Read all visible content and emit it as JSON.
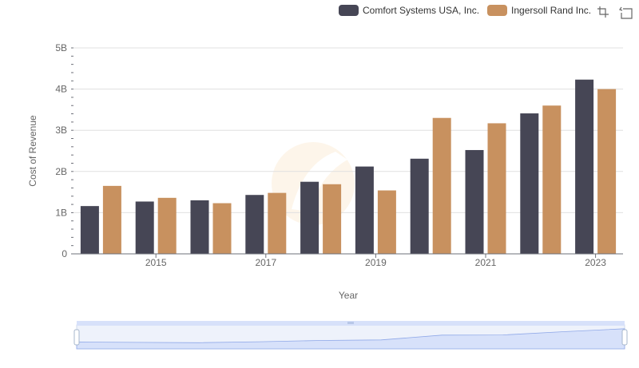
{
  "legend": {
    "items": [
      {
        "label": "Comfort Systems USA, Inc.",
        "color": "#464655"
      },
      {
        "label": "Ingersoll Rand Inc.",
        "color": "#c8915f"
      }
    ]
  },
  "toolbox": {
    "icons": [
      "zoom-icon",
      "zoom-reset-icon"
    ]
  },
  "chart_data": {
    "type": "bar",
    "categories": [
      "2014",
      "2015",
      "2016",
      "2017",
      "2018",
      "2019",
      "2020",
      "2021",
      "2022",
      "2023"
    ],
    "x_tick_labels": [
      "2015",
      "2017",
      "2019",
      "2021",
      "2023"
    ],
    "series": [
      {
        "name": "Comfort Systems USA, Inc.",
        "color": "#464655",
        "values": [
          1.16,
          1.27,
          1.3,
          1.43,
          1.75,
          2.12,
          2.31,
          2.52,
          3.41,
          4.23
        ]
      },
      {
        "name": "Ingersoll Rand Inc.",
        "color": "#c8915f",
        "values": [
          1.65,
          1.36,
          1.23,
          1.48,
          1.69,
          1.54,
          3.3,
          3.17,
          3.6,
          4.0
        ]
      }
    ],
    "y_ticks": [
      "0",
      "1B",
      "2B",
      "3B",
      "4B",
      "5B"
    ],
    "ylim": [
      0,
      5
    ],
    "xlabel": "Year",
    "ylabel": "Cost of Revenue",
    "grid": true,
    "legend_position": "top-right"
  },
  "data_zoom": {
    "range": [
      0,
      1
    ],
    "handle_color": "#a7b7cc",
    "fill_color": "#d7e1fa",
    "line_color": "#8fa8e8"
  }
}
